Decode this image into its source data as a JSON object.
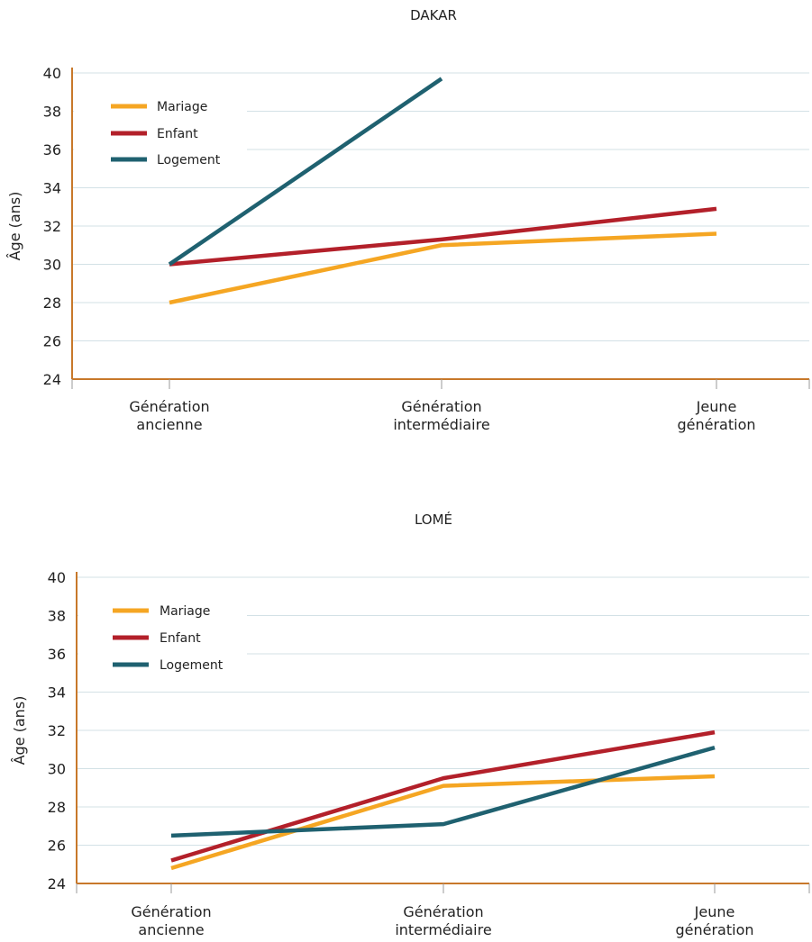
{
  "chart_data": [
    {
      "type": "line",
      "title": "DAKAR",
      "ylabel": "Âge (ans)",
      "ylim": [
        24,
        40
      ],
      "yticks": [
        24,
        26,
        28,
        30,
        32,
        34,
        36,
        38,
        40
      ],
      "categories": [
        [
          "Génération",
          "ancienne"
        ],
        [
          "Génération",
          "intermédiaire"
        ],
        [
          "Jeune",
          "génération"
        ]
      ],
      "grid": "horizontal",
      "legend": "top-left",
      "series": [
        {
          "name": "Mariage",
          "color": "#F5A623",
          "values": [
            28.0,
            31.0,
            31.6
          ]
        },
        {
          "name": "Enfant",
          "color": "#B3202A",
          "values": [
            30.0,
            31.3,
            32.9
          ]
        },
        {
          "name": "Logement",
          "color": "#1F6170",
          "values": [
            30.0,
            39.7,
            null
          ]
        }
      ]
    },
    {
      "type": "line",
      "title": "LOMÉ",
      "ylabel": "Âge (ans)",
      "ylim": [
        24,
        40
      ],
      "yticks": [
        24,
        26,
        28,
        30,
        32,
        34,
        36,
        38,
        40
      ],
      "categories": [
        [
          "Génération",
          "ancienne"
        ],
        [
          "Génération",
          "intermédiaire"
        ],
        [
          "Jeune",
          "génération"
        ]
      ],
      "grid": "horizontal",
      "legend": "top-left",
      "series": [
        {
          "name": "Mariage",
          "color": "#F5A623",
          "values": [
            24.8,
            29.1,
            29.6
          ]
        },
        {
          "name": "Enfant",
          "color": "#B3202A",
          "values": [
            25.2,
            29.5,
            31.9
          ]
        },
        {
          "name": "Logement",
          "color": "#1F6170",
          "values": [
            26.5,
            27.1,
            31.1
          ]
        }
      ]
    }
  ]
}
